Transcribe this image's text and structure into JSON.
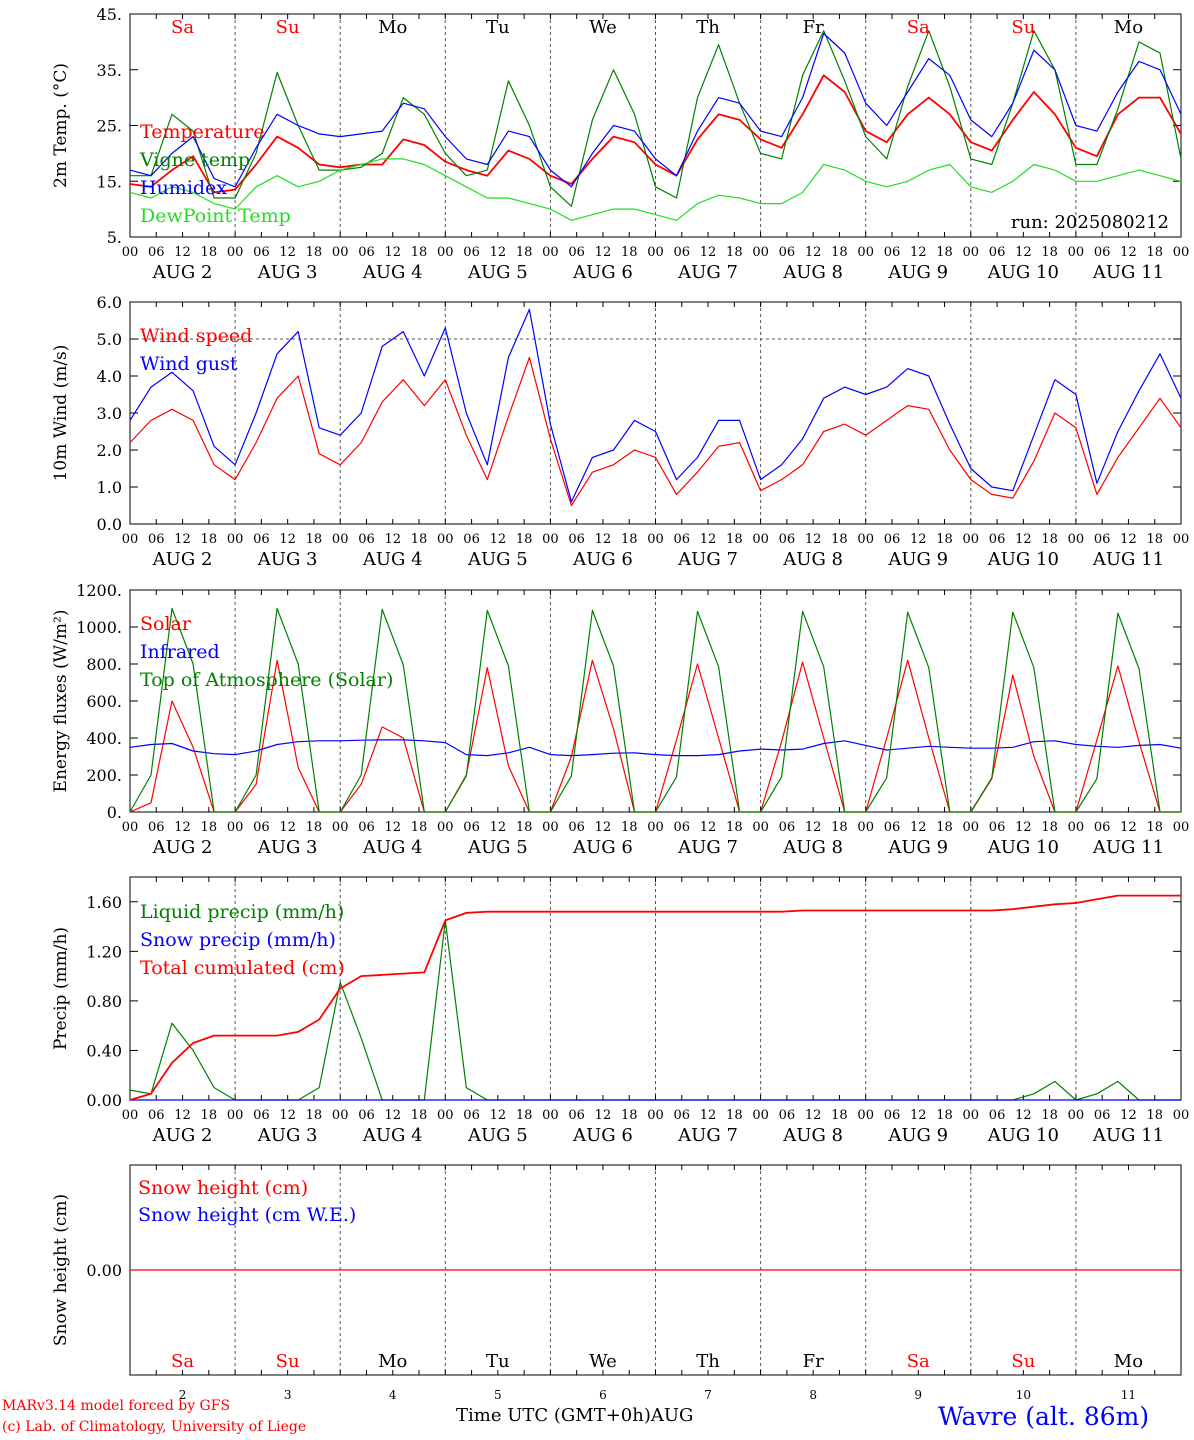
{
  "colors": {
    "red": "#ff0000",
    "blue": "#0000ff",
    "green": "#008000",
    "lightgreen": "#22dd22",
    "black": "#000000",
    "grey": "#555555"
  },
  "days": [
    {
      "abbr": "Sa",
      "date": "2",
      "color": "#ff0000"
    },
    {
      "abbr": "Su",
      "date": "3",
      "color": "#ff0000"
    },
    {
      "abbr": "Mo",
      "date": "4",
      "color": "#000000"
    },
    {
      "abbr": "Tu",
      "date": "5",
      "color": "#000000"
    },
    {
      "abbr": "We",
      "date": "6",
      "color": "#000000"
    },
    {
      "abbr": "Th",
      "date": "7",
      "color": "#000000"
    },
    {
      "abbr": "Fr",
      "date": "8",
      "color": "#000000"
    },
    {
      "abbr": "Sa",
      "date": "9",
      "color": "#ff0000"
    },
    {
      "abbr": "Su",
      "date": "10",
      "color": "#ff0000"
    },
    {
      "abbr": "Mo",
      "date": "11",
      "color": "#000000"
    }
  ],
  "hour_labels": [
    "00",
    "06",
    "12",
    "18"
  ],
  "date_label_prefix": "AUG",
  "footer": {
    "model": "MARv3.14 model forced by GFS",
    "copyright": "(c) Lab. of Climatology, University of Liege",
    "xlabel": "Time UTC (GMT+0h)AUG",
    "station": "Wavre (alt. 86m)",
    "model_color": "#ff0000",
    "station_color": "#0000ff"
  },
  "chart_data": [
    {
      "type": "line",
      "ylabel": "2m Temp. (°C)",
      "ylim": [
        5,
        45
      ],
      "yticks": [
        "5.",
        "15.",
        "25.",
        "35.",
        "45."
      ],
      "annotation": "run: 2025080212",
      "series": [
        {
          "name": "Temperature",
          "color": "#ff0000",
          "values": [
            14.5,
            14,
            17,
            19.5,
            13,
            13.5,
            18,
            23,
            21,
            18,
            17.5,
            18,
            18,
            22.5,
            21.5,
            18.5,
            17,
            16,
            20.5,
            19,
            16,
            14.5,
            19,
            23,
            22,
            18,
            16,
            22.5,
            27,
            26,
            22.5,
            21,
            27,
            34,
            31,
            24,
            22,
            27,
            30,
            27,
            22,
            20.5,
            26,
            31,
            27,
            21,
            19.5,
            27,
            30,
            30,
            23.5
          ]
        },
        {
          "name": "Vigne temp",
          "color": "#008000",
          "values": [
            16,
            16,
            27,
            24,
            12,
            12,
            20,
            34.5,
            25,
            17,
            17,
            17.5,
            20,
            30,
            27,
            20,
            16,
            17,
            33,
            25,
            14,
            10.5,
            26,
            35,
            27,
            14,
            12,
            30,
            39.5,
            29,
            20,
            19,
            34,
            42,
            33,
            23,
            19,
            32,
            42,
            32,
            19,
            18,
            29,
            42,
            35,
            18,
            18,
            28,
            40,
            38,
            19
          ]
        },
        {
          "name": "Humidex",
          "color": "#0000ff",
          "values": [
            17,
            16,
            20,
            23,
            15.5,
            14,
            21,
            27,
            25,
            23.5,
            23,
            23.5,
            24,
            29,
            28,
            23,
            19,
            18,
            24,
            23,
            17,
            14,
            20,
            25,
            24,
            19,
            16,
            24,
            30,
            29,
            24,
            23,
            30,
            41.5,
            38,
            29,
            25,
            31,
            37,
            34,
            26,
            23,
            29,
            38.5,
            35,
            25,
            24,
            31,
            36.5,
            35,
            27
          ]
        },
        {
          "name": "DewPoint Temp",
          "color": "#22dd22",
          "values": [
            13,
            12,
            14,
            13,
            11,
            10,
            14,
            16,
            14,
            15,
            17,
            18,
            19,
            19,
            18,
            16,
            14,
            12,
            12,
            11,
            10,
            8,
            9,
            10,
            10,
            9,
            8,
            11,
            12.5,
            12,
            11,
            11,
            13,
            18,
            17,
            15,
            14,
            15,
            17,
            18,
            14,
            13,
            15,
            18,
            17,
            15,
            15,
            16,
            17,
            16,
            15
          ]
        }
      ]
    },
    {
      "type": "line",
      "ylabel": "10m Wind (m/s)",
      "ylim": [
        0,
        6
      ],
      "yticks": [
        "0.0",
        "1.0",
        "2.0",
        "3.0",
        "4.0",
        "5.0",
        "6.0"
      ],
      "reference_line": 5.0,
      "series": [
        {
          "name": "Wind speed",
          "color": "#ff0000",
          "values": [
            2.2,
            2.8,
            3.1,
            2.8,
            1.6,
            1.2,
            2.2,
            3.4,
            4,
            1.9,
            1.6,
            2.2,
            3.3,
            3.9,
            3.2,
            3.9,
            2.4,
            1.2,
            2.9,
            4.5,
            2.3,
            0.5,
            1.4,
            1.6,
            2,
            1.8,
            0.8,
            1.4,
            2.1,
            2.2,
            0.9,
            1.2,
            1.6,
            2.5,
            2.7,
            2.4,
            2.8,
            3.2,
            3.1,
            2,
            1.2,
            0.8,
            0.7,
            1.7,
            3,
            2.6,
            0.8,
            1.8,
            2.6,
            3.4,
            2.6
          ]
        },
        {
          "name": "Wind gust",
          "color": "#0000ff",
          "values": [
            2.8,
            3.7,
            4.1,
            3.6,
            2.1,
            1.6,
            3,
            4.6,
            5.2,
            2.6,
            2.4,
            3,
            4.8,
            5.2,
            4,
            5.3,
            3,
            1.6,
            4.5,
            5.8,
            2.7,
            0.6,
            1.8,
            2,
            2.8,
            2.5,
            1.2,
            1.8,
            2.8,
            2.8,
            1.2,
            1.6,
            2.3,
            3.4,
            3.7,
            3.5,
            3.7,
            4.2,
            4,
            2.7,
            1.5,
            1,
            0.9,
            2.4,
            3.9,
            3.5,
            1.1,
            2.5,
            3.6,
            4.6,
            3.4
          ]
        }
      ]
    },
    {
      "type": "line",
      "ylabel": "Energy fluxes (W/m²)",
      "ylim": [
        0,
        1200
      ],
      "yticks": [
        "0.",
        "200.",
        "400.",
        "600.",
        "800.",
        "1000.",
        "1200."
      ],
      "series": [
        {
          "name": "Solar",
          "color": "#ff0000",
          "values": [
            0,
            50,
            600,
            350,
            0,
            0,
            150,
            820,
            240,
            0,
            0,
            150,
            460,
            400,
            0,
            0,
            200,
            780,
            250,
            0,
            0,
            300,
            820,
            450,
            0,
            0,
            390,
            800,
            400,
            0,
            0,
            380,
            810,
            400,
            0,
            0,
            400,
            820,
            400,
            0,
            0,
            180,
            740,
            300,
            0,
            0,
            390,
            790,
            380,
            0,
            0
          ]
        },
        {
          "name": "Infrared",
          "color": "#0000ff",
          "values": [
            350,
            365,
            370,
            330,
            315,
            310,
            330,
            365,
            380,
            385,
            385,
            388,
            390,
            390,
            385,
            375,
            310,
            305,
            320,
            350,
            310,
            305,
            310,
            318,
            320,
            310,
            305,
            305,
            310,
            330,
            340,
            335,
            340,
            370,
            385,
            360,
            335,
            345,
            355,
            350,
            345,
            345,
            350,
            380,
            385,
            365,
            355,
            350,
            360,
            365,
            345
          ]
        },
        {
          "name": "Top of Atmosphere (Solar)",
          "color": "#008000",
          "values": [
            0,
            200,
            1100,
            800,
            0,
            0,
            200,
            1100,
            800,
            0,
            0,
            200,
            1095,
            795,
            0,
            0,
            195,
            1090,
            790,
            0,
            0,
            195,
            1090,
            790,
            0,
            0,
            190,
            1085,
            785,
            0,
            0,
            190,
            1085,
            785,
            0,
            0,
            185,
            1080,
            780,
            0,
            0,
            185,
            1080,
            780,
            0,
            0,
            180,
            1075,
            775,
            0,
            0
          ]
        }
      ]
    },
    {
      "type": "line",
      "ylabel": "Precip (mm/h)",
      "ylim": [
        0,
        1.8
      ],
      "yticks": [
        "0.00",
        "0.40",
        "0.80",
        "1.20",
        "1.60"
      ],
      "series": [
        {
          "name": "Liquid precip (mm/h)",
          "color": "#008000",
          "values": [
            0.08,
            0.05,
            0.62,
            0.4,
            0.1,
            0,
            0,
            0,
            0,
            0.1,
            0.95,
            0.5,
            0,
            0,
            0,
            1.45,
            0.1,
            0,
            0,
            0,
            0,
            0,
            0,
            0,
            0,
            0,
            0,
            0,
            0,
            0,
            0,
            0,
            0,
            0,
            0,
            0,
            0,
            0,
            0,
            0,
            0,
            0,
            0,
            0.05,
            0.15,
            0,
            0.05,
            0.15,
            0,
            0,
            0
          ]
        },
        {
          "name": "Snow precip (mm/h)",
          "color": "#0000ff",
          "values": [
            0,
            0,
            0,
            0,
            0,
            0,
            0,
            0,
            0,
            0,
            0,
            0,
            0,
            0,
            0,
            0,
            0,
            0,
            0,
            0,
            0,
            0,
            0,
            0,
            0,
            0,
            0,
            0,
            0,
            0,
            0,
            0,
            0,
            0,
            0,
            0,
            0,
            0,
            0,
            0,
            0,
            0,
            0,
            0,
            0,
            0,
            0,
            0,
            0,
            0,
            0
          ]
        },
        {
          "name": "Total cumulated (cm)",
          "color": "#ff0000",
          "values": [
            0,
            0.05,
            0.3,
            0.46,
            0.52,
            0.52,
            0.52,
            0.52,
            0.55,
            0.65,
            0.9,
            1.0,
            1.01,
            1.02,
            1.03,
            1.45,
            1.51,
            1.52,
            1.52,
            1.52,
            1.52,
            1.52,
            1.52,
            1.52,
            1.52,
            1.52,
            1.52,
            1.52,
            1.52,
            1.52,
            1.52,
            1.52,
            1.53,
            1.53,
            1.53,
            1.53,
            1.53,
            1.53,
            1.53,
            1.53,
            1.53,
            1.53,
            1.54,
            1.56,
            1.58,
            1.59,
            1.62,
            1.65,
            1.65,
            1.65,
            1.65
          ]
        }
      ]
    },
    {
      "type": "line",
      "ylabel": "Snow height (cm)",
      "ylim": [
        -1,
        1
      ],
      "yticks": [
        "0.00"
      ],
      "series": [
        {
          "name": "Snow height (cm)",
          "color": "#ff0000",
          "values": [
            0,
            0,
            0,
            0,
            0,
            0,
            0,
            0,
            0,
            0,
            0,
            0,
            0,
            0,
            0,
            0,
            0,
            0,
            0,
            0,
            0,
            0,
            0,
            0,
            0,
            0,
            0,
            0,
            0,
            0,
            0,
            0,
            0,
            0,
            0,
            0,
            0,
            0,
            0,
            0,
            0,
            0,
            0,
            0,
            0,
            0,
            0,
            0,
            0,
            0,
            0
          ]
        },
        {
          "name": "Snow height (cm W.E.)",
          "color": "#0000ff",
          "values": []
        }
      ]
    }
  ]
}
